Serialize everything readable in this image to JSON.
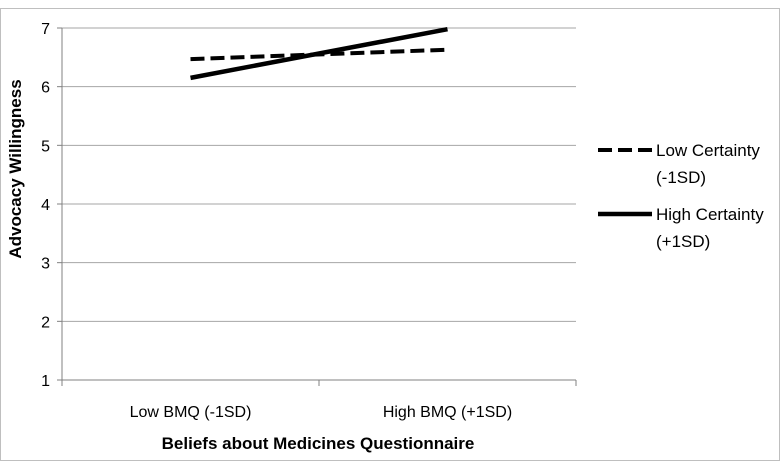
{
  "chart_data": {
    "type": "line",
    "title": "",
    "xlabel": "Beliefs about Medicines Questionnaire",
    "ylabel": "Advocacy Willingness",
    "categories": [
      "Low BMQ (-1SD)",
      "High BMQ (+1SD)"
    ],
    "ylim": [
      1,
      7
    ],
    "yticks": [
      "1",
      "2",
      "3",
      "4",
      "5",
      "6",
      "7"
    ],
    "grid": true,
    "legend_position": "right",
    "series": [
      {
        "name_line1": "Low Certainty",
        "name_line2": "(-1SD)",
        "values": [
          6.47,
          6.63
        ],
        "dash": "dashed",
        "color": "#000000"
      },
      {
        "name_line1": "High Certainty",
        "name_line2": "(+1SD)",
        "values": [
          6.15,
          6.98
        ],
        "dash": "solid",
        "color": "#000000"
      }
    ]
  }
}
